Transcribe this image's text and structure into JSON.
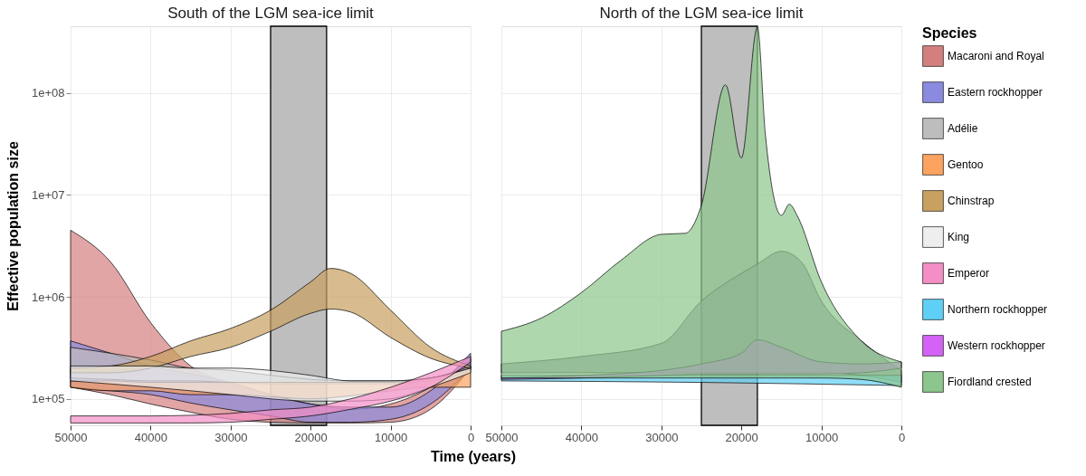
{
  "chart_data": [
    {
      "type": "area",
      "title": "South of the LGM sea-ice limit",
      "ylabel": "Effective population size",
      "xlabel": "Time (years)",
      "log": "y",
      "grid": true,
      "legend": "right",
      "xlim": [
        50000,
        0
      ],
      "xticks": [
        50000,
        40000,
        30000,
        20000,
        10000,
        0
      ],
      "ylim": [
        55000,
        450000000
      ],
      "yticks": [
        {
          "value": 100000,
          "label": "1e+05"
        },
        {
          "value": 1000000,
          "label": "1e+06"
        },
        {
          "value": 10000000,
          "label": "1e+07"
        },
        {
          "value": 100000000,
          "label": "1e+08"
        }
      ],
      "bands": [
        {
          "axis": "x",
          "from": 25000,
          "to": 18000,
          "color": "#bebebe"
        }
      ],
      "x": [
        50000,
        45000,
        40000,
        35000,
        30000,
        25000,
        20000,
        15000,
        10000,
        5000,
        0
      ],
      "series": [
        {
          "name": "Macaroni and Royal",
          "color": "#d47f7f",
          "values": [
            null,
            null,
            null,
            null,
            null,
            null,
            null,
            null,
            null,
            null,
            null
          ],
          "upper": [
            4500000.0,
            2200000.0,
            560000.0,
            210000.0,
            140000.0,
            110000.0,
            89000.0,
            79000.0,
            89000.0,
            130000.0,
            250000.0
          ],
          "lower": [
            130000.0,
            110000.0,
            89000.0,
            74000.0,
            63000.0,
            59000.0,
            58000.0,
            58000.0,
            59000.0,
            79000.0,
            200000.0
          ]
        },
        {
          "name": "Eastern rockhopper",
          "color": "#8a8ade",
          "values": [
            null,
            null,
            null,
            null,
            null,
            null,
            null,
            null,
            null,
            null,
            null
          ],
          "upper": [
            370000.0,
            280000.0,
            210000.0,
            175000.0,
            145000.0,
            110000.0,
            89000.0,
            83000.0,
            83000.0,
            120000.0,
            280000.0
          ],
          "lower": [
            130000.0,
            120000.0,
            110000.0,
            91000.0,
            78000.0,
            68000.0,
            59000.0,
            59000.0,
            63000.0,
            89000.0,
            200000.0
          ]
        },
        {
          "name": "Adélie",
          "color": "#bdbdbd",
          "values": [
            null,
            null,
            null,
            null,
            null,
            null,
            null,
            null,
            null,
            null,
            null
          ],
          "upper": [
            320000.0,
            280000.0,
            240000.0,
            200000.0,
            190000.0,
            170000.0,
            155000.0,
            150000.0,
            150000.0,
            160000.0,
            210000.0
          ],
          "lower": [
            160000.0,
            155000.0,
            150000.0,
            150000.0,
            145000.0,
            140000.0,
            140000.0,
            140000.0,
            140000.0,
            150000.0,
            190000.0
          ]
        },
        {
          "name": "Gentoo",
          "color": "#fca35f",
          "values": [
            null,
            null,
            null,
            null,
            null,
            null,
            null,
            null,
            null,
            null,
            null
          ],
          "upper": [
            150000.0,
            150000.0,
            145000.0,
            145000.0,
            145000.0,
            145000.0,
            145000.0,
            145000.0,
            145000.0,
            160000.0,
            200000.0
          ],
          "lower": [
            130000.0,
            120000.0,
            120000.0,
            110000.0,
            110000.0,
            105000.0,
            100000.0,
            107000.0,
            120000.0,
            130000.0,
            130000.0
          ]
        },
        {
          "name": "Chinstrap",
          "color": "#c8a060",
          "x": [
            50000,
            45000,
            40000,
            35000,
            30000,
            25000,
            20000,
            17500,
            15000,
            10000,
            5000,
            0
          ],
          "values": [
            null,
            null,
            null,
            null,
            null,
            null,
            null,
            null,
            null,
            null,
            null,
            null
          ],
          "upper": [
            200000.0,
            210000.0,
            260000.0,
            370000.0,
            490000.0,
            740000.0,
            1400000.0,
            1900000.0,
            1700000.0,
            740000.0,
            320000.0,
            210000.0
          ],
          "lower": [
            180000.0,
            180000.0,
            200000.0,
            260000.0,
            320000.0,
            460000.0,
            690000.0,
            760000.0,
            710000.0,
            400000.0,
            250000.0,
            200000.0
          ]
        },
        {
          "name": "King",
          "color": "#eeeeee",
          "values": [
            null,
            null,
            null,
            null,
            null,
            null,
            null,
            null,
            null,
            null,
            null
          ],
          "upper": [
            210000.0,
            210000.0,
            210000.0,
            200000.0,
            200000.0,
            190000.0,
            170000.0,
            150000.0,
            150000.0,
            160000.0,
            200000.0
          ],
          "lower": [
            150000.0,
            140000.0,
            130000.0,
            120000.0,
            110000.0,
            100000.0,
            95000.0,
            95000.0,
            100000.0,
            130000.0,
            180000.0
          ]
        },
        {
          "name": "Emperor",
          "color": "#f48fc6",
          "values": [
            null,
            null,
            null,
            null,
            null,
            null,
            null,
            null,
            null,
            null,
            null
          ],
          "upper": [
            68000.0,
            68000.0,
            68000.0,
            69000.0,
            72000.0,
            78000.0,
            83000.0,
            100000.0,
            130000.0,
            180000.0,
            260000.0
          ],
          "lower": [
            58000.0,
            58000.0,
            58000.0,
            58000.0,
            59000.0,
            63000.0,
            68000.0,
            79000.0,
            95000.0,
            130000.0,
            230000.0
          ]
        }
      ]
    },
    {
      "type": "area",
      "title": "North of the LGM sea-ice limit",
      "legend_title": "Species",
      "log": "y",
      "grid": true,
      "legend": "right",
      "tick_labels": "x",
      "xlim": [
        50000,
        0
      ],
      "xticks": [
        50000,
        40000,
        30000,
        20000,
        10000,
        0
      ],
      "ylim": [
        55000,
        450000000
      ],
      "bands": [
        {
          "axis": "x",
          "from": 25000,
          "to": 18000,
          "color": "#bebebe"
        }
      ],
      "series": [
        {
          "color": "#8a8d9a",
          "x": [
            50000,
            40000,
            30000,
            25000,
            20000,
            18000,
            15000,
            12500,
            10000,
            5000,
            0
          ],
          "values": [
            null,
            null,
            null,
            null,
            null,
            null,
            null,
            null,
            null,
            null,
            null
          ],
          "upper": [
            220000.0,
            260000.0,
            350000.0,
            910000.0,
            1700000.0,
            2100000.0,
            2800000.0,
            2200000.0,
            910000.0,
            370000.0,
            190000.0
          ],
          "lower": [
            180000.0,
            180000.0,
            180000.0,
            180000.0,
            180000.0,
            180000.0,
            180000.0,
            180000.0,
            180000.0,
            170000.0,
            145000.0
          ]
        },
        {
          "name": "Northern rockhopper",
          "color": "#5fd0f5",
          "x": [
            50000,
            25000,
            0
          ],
          "values": [
            null,
            null,
            null
          ],
          "upper": [
            170000.0,
            170000.0,
            170000.0
          ],
          "lower": [
            150000.0,
            145000.0,
            135000.0
          ]
        },
        {
          "name": "Western rockhopper",
          "color": "#d463f5",
          "x": [
            50000,
            40000,
            30000,
            25000,
            20000,
            18000,
            15000,
            10000,
            5000,
            0
          ],
          "values": [
            null,
            null,
            null,
            null,
            null,
            null,
            null,
            null,
            null,
            null
          ],
          "upper": [
            160000.0,
            170000.0,
            190000.0,
            220000.0,
            280000.0,
            380000.0,
            320000.0,
            230000.0,
            220000.0,
            230000.0
          ],
          "lower": [
            155000.0,
            160000.0,
            170000.0,
            175000.0,
            175000.0,
            175000.0,
            175000.0,
            175000.0,
            180000.0,
            200000.0
          ]
        },
        {
          "name": "Fiordland crested",
          "color": "#8cc68c",
          "x": [
            50000,
            45000,
            40000,
            35000,
            30000,
            27000,
            25000,
            22000,
            20000,
            18000,
            17000,
            15000,
            14000,
            13000,
            10000,
            5000,
            0
          ],
          "values": [
            null,
            null,
            null,
            null,
            null,
            null,
            null,
            null,
            null,
            null,
            null,
            null,
            null,
            null,
            null,
            null,
            null
          ],
          "upper": [
            460000.0,
            620000.0,
            1100000.0,
            2300000.0,
            4100000.0,
            4200000.0,
            7900000.0,
            120000000.0,
            23000000.0,
            440000000.0,
            39000000.0,
            6300000.0,
            8100000.0,
            6200000.0,
            1400000.0,
            370000.0,
            230000.0
          ],
          "lower": [
            160000.0,
            160000.0,
            160000.0,
            160000.0,
            160000.0,
            160000.0,
            160000.0,
            160000.0,
            160000.0,
            160000.0,
            160000.0,
            160000.0,
            160000.0,
            160000.0,
            160000.0,
            155000.0,
            130000.0
          ]
        }
      ]
    }
  ]
}
